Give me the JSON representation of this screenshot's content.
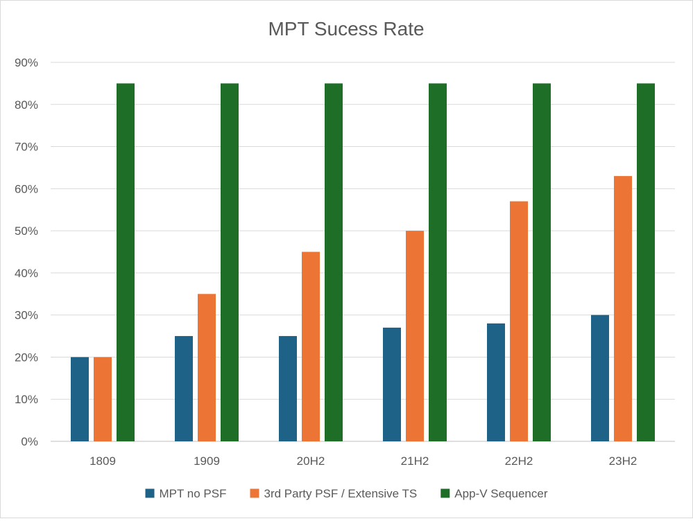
{
  "chart_data": {
    "type": "bar",
    "title": "MPT Sucess Rate",
    "xlabel": "",
    "ylabel": "",
    "categories": [
      "1809",
      "1909",
      "20H2",
      "21H2",
      "22H2",
      "23H2"
    ],
    "y_ticks": [
      "0%",
      "10%",
      "20%",
      "30%",
      "40%",
      "50%",
      "60%",
      "70%",
      "80%",
      "90%"
    ],
    "ylim": [
      0,
      90
    ],
    "grid": true,
    "legend_position": "bottom",
    "series": [
      {
        "name": "MPT no PSF",
        "color": "#1f6287",
        "values": [
          20,
          25,
          25,
          27,
          28,
          30
        ]
      },
      {
        "name": "3rd Party PSF / Extensive TS",
        "color": "#ec7535",
        "values": [
          20,
          35,
          45,
          50,
          57,
          63
        ]
      },
      {
        "name": "App-V Sequencer",
        "color": "#1e6e28",
        "values": [
          85,
          85,
          85,
          85,
          85,
          85
        ]
      }
    ]
  }
}
